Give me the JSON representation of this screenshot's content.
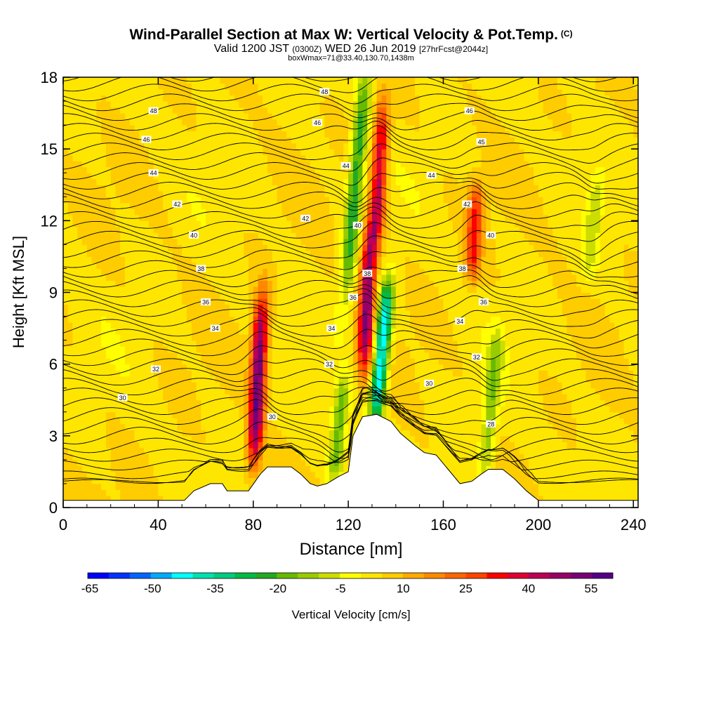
{
  "chart_data": {
    "type": "heatmap",
    "title": "Wind-Parallel Section at Max W: Vertical Velocity & Pot.Temp.",
    "title_mark": "(C)",
    "subtitle": {
      "valid": "Valid 1200 JST",
      "utc": "(0300Z)",
      "date": "WED 26 Jun 2019",
      "run": "[27hrFcst@2044z]"
    },
    "box_info": "boxWmax=71@33.40,130.70,1438m",
    "xlabel": "Distance [nm]",
    "ylabel": "Height [Kft MSL]",
    "xlim": [
      0,
      242
    ],
    "ylim": [
      0,
      18
    ],
    "x_ticks": [
      0,
      40,
      80,
      120,
      160,
      200,
      240
    ],
    "y_ticks": [
      0,
      3,
      6,
      9,
      12,
      15,
      18
    ],
    "colorbar": {
      "label": "Vertical Velocity [cm/s]",
      "tick_labels": [
        -65,
        -50,
        -35,
        -20,
        -5,
        10,
        25,
        40,
        55
      ],
      "min": -70,
      "max": 60,
      "colors": [
        "#0000ff",
        "#0033ff",
        "#0066ff",
        "#00aaff",
        "#00ffff",
        "#00e0b0",
        "#00cc80",
        "#00bb44",
        "#22aa22",
        "#66bb00",
        "#99cc00",
        "#ccdd00",
        "#ffff00",
        "#ffe600",
        "#ffcc00",
        "#ffaa00",
        "#ff8800",
        "#ff6600",
        "#ff4400",
        "#ff0000",
        "#dd0033",
        "#bb0055",
        "#990066",
        "#770077",
        "#550088"
      ]
    },
    "vertical_velocity_features": [
      {
        "x": 82,
        "y_bottom": 2.2,
        "y_top": 8.5,
        "w": 55,
        "sign": "updraft"
      },
      {
        "x": 128,
        "y_bottom": 6.0,
        "y_top": 11.5,
        "w": 50,
        "sign": "updraft"
      },
      {
        "x": 133,
        "y_bottom": 11.5,
        "y_top": 16.5,
        "w": 40,
        "sign": "updraft"
      },
      {
        "x": 134,
        "y_bottom": 4.0,
        "y_top": 9.0,
        "w": -55,
        "sign": "downdraft"
      },
      {
        "x": 123,
        "y_bottom": 9.0,
        "y_top": 18.0,
        "w": -30,
        "sign": "downdraft"
      },
      {
        "x": 116,
        "y_bottom": 1.5,
        "y_top": 5.0,
        "w": -25,
        "sign": "downdraft"
      },
      {
        "x": 180,
        "y_bottom": 1.5,
        "y_top": 7.0,
        "w": -20,
        "sign": "downdraft"
      },
      {
        "x": 173,
        "y_bottom": 10.0,
        "y_top": 13.0,
        "w": 30,
        "sign": "updraft"
      },
      {
        "x": 223,
        "y_bottom": 10.0,
        "y_top": 13.5,
        "w": -12,
        "sign": "downdraft"
      }
    ],
    "theta_contours": [
      {
        "value": 30,
        "label": "30"
      },
      {
        "value": 32,
        "label": "32"
      },
      {
        "value": 34,
        "label": "34"
      },
      {
        "value": 36,
        "label": "36"
      },
      {
        "value": 38,
        "label": "38"
      },
      {
        "value": 40,
        "label": "40"
      },
      {
        "value": 42,
        "label": "42"
      },
      {
        "value": 44,
        "label": "44"
      },
      {
        "value": 46,
        "label": "46"
      },
      {
        "value": 48,
        "label": "48"
      }
    ],
    "contour_labels": [
      {
        "text": "48",
        "x": 38,
        "y": 16.6
      },
      {
        "text": "46",
        "x": 35,
        "y": 15.4
      },
      {
        "text": "44",
        "x": 38,
        "y": 14.0
      },
      {
        "text": "42",
        "x": 48,
        "y": 12.7
      },
      {
        "text": "40",
        "x": 55,
        "y": 11.4
      },
      {
        "text": "38",
        "x": 58,
        "y": 10.0
      },
      {
        "text": "36",
        "x": 60,
        "y": 8.6
      },
      {
        "text": "34",
        "x": 64,
        "y": 7.5
      },
      {
        "text": "32",
        "x": 39,
        "y": 5.8
      },
      {
        "text": "30",
        "x": 25,
        "y": 4.6
      },
      {
        "text": "48",
        "x": 110,
        "y": 17.4
      },
      {
        "text": "46",
        "x": 107,
        "y": 16.1
      },
      {
        "text": "44",
        "x": 119,
        "y": 14.3
      },
      {
        "text": "42",
        "x": 102,
        "y": 12.1
      },
      {
        "text": "40",
        "x": 124,
        "y": 11.8
      },
      {
        "text": "38",
        "x": 128,
        "y": 9.8
      },
      {
        "text": "36",
        "x": 122,
        "y": 8.8
      },
      {
        "text": "34",
        "x": 113,
        "y": 7.5
      },
      {
        "text": "32",
        "x": 112,
        "y": 6.0
      },
      {
        "text": "30",
        "x": 88,
        "y": 3.8
      },
      {
        "text": "46",
        "x": 171,
        "y": 16.6
      },
      {
        "text": "45",
        "x": 176,
        "y": 15.3
      },
      {
        "text": "44",
        "x": 155,
        "y": 13.9
      },
      {
        "text": "42",
        "x": 170,
        "y": 12.7
      },
      {
        "text": "40",
        "x": 180,
        "y": 11.4
      },
      {
        "text": "38",
        "x": 168,
        "y": 10.0
      },
      {
        "text": "36",
        "x": 177,
        "y": 8.6
      },
      {
        "text": "34",
        "x": 167,
        "y": 7.8
      },
      {
        "text": "32",
        "x": 174,
        "y": 6.3
      },
      {
        "text": "30",
        "x": 154,
        "y": 5.2
      },
      {
        "text": "28",
        "x": 180,
        "y": 3.5
      }
    ],
    "terrain": [
      [
        0,
        0.3
      ],
      [
        51,
        0.3
      ],
      [
        55,
        0.7
      ],
      [
        62,
        1.0
      ],
      [
        67,
        1.0
      ],
      [
        69,
        0.7
      ],
      [
        78,
        0.7
      ],
      [
        83,
        1.4
      ],
      [
        86,
        1.7
      ],
      [
        96,
        1.7
      ],
      [
        100,
        1.4
      ],
      [
        104,
        1.0
      ],
      [
        107,
        0.9
      ],
      [
        111,
        1.0
      ],
      [
        116,
        1.3
      ],
      [
        120,
        1.5
      ],
      [
        122,
        3.0
      ],
      [
        126,
        3.8
      ],
      [
        132,
        3.9
      ],
      [
        138,
        3.6
      ],
      [
        142,
        3.1
      ],
      [
        148,
        2.6
      ],
      [
        152,
        2.3
      ],
      [
        157,
        2.2
      ],
      [
        162,
        1.6
      ],
      [
        167,
        1.0
      ],
      [
        172,
        1.1
      ],
      [
        176,
        1.4
      ],
      [
        179,
        1.6
      ],
      [
        185,
        1.6
      ],
      [
        190,
        1.2
      ],
      [
        195,
        0.7
      ],
      [
        200,
        0.3
      ],
      [
        242,
        0.3
      ]
    ]
  }
}
